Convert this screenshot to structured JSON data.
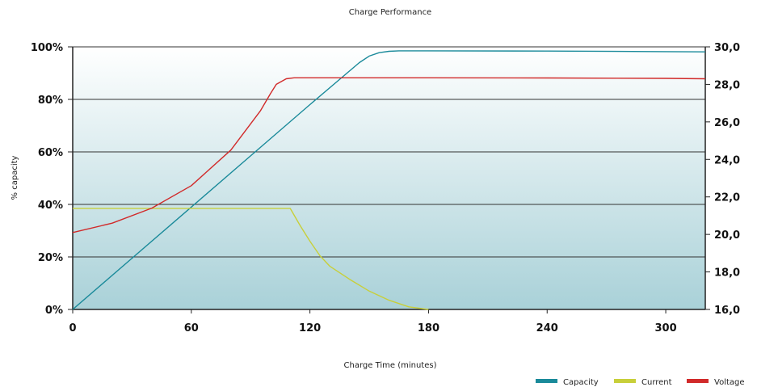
{
  "chart_data": {
    "type": "line",
    "title": "Charge Performance",
    "xlabel": "Charge Time (minutes)",
    "ylabel": "% capacity",
    "xlim": [
      0,
      320
    ],
    "ylim": [
      0,
      100
    ],
    "y2lim": [
      16,
      30
    ],
    "x_ticks": [
      0,
      60,
      120,
      180,
      240,
      300
    ],
    "x_tick_labels": [
      "0",
      "60",
      "120",
      "180",
      "240",
      "300"
    ],
    "y_ticks": [
      0,
      20,
      40,
      60,
      80,
      100
    ],
    "y_tick_labels": [
      "0%",
      "20%",
      "40%",
      "60%",
      "80%",
      "100%"
    ],
    "y2_ticks": [
      16,
      18,
      20,
      22,
      24,
      26,
      28,
      30
    ],
    "y2_tick_labels": [
      "16,0",
      "18,0",
      "20,0",
      "22,0",
      "24,0",
      "26,0",
      "28,0",
      "30,0"
    ],
    "grid": "horizontal",
    "legend_position": "bottom-right",
    "series": [
      {
        "name": "Capacity",
        "axis": "left",
        "color": "#1a8a9a",
        "x": [
          0,
          30,
          60,
          90,
          120,
          145,
          150,
          155,
          160,
          165,
          180,
          240,
          300,
          320
        ],
        "y": [
          0,
          19.5,
          39,
          58.5,
          78,
          94,
          96.5,
          97.8,
          98.3,
          98.5,
          98.5,
          98.4,
          98.2,
          98.1
        ]
      },
      {
        "name": "Current",
        "axis": "left",
        "color": "#c8cf3a",
        "x": [
          0,
          60,
          100,
          110,
          115,
          120,
          125,
          130,
          140,
          150,
          160,
          170,
          180
        ],
        "y": [
          38.5,
          38.5,
          38.5,
          38.5,
          32,
          26,
          20.5,
          16.5,
          11.5,
          7,
          3.5,
          1,
          0
        ]
      },
      {
        "name": "Voltage",
        "axis": "right",
        "color": "#d12a2a",
        "x": [
          0,
          20,
          40,
          60,
          80,
          95,
          100,
          103,
          108,
          112,
          120,
          180,
          240,
          300,
          320
        ],
        "y": [
          20.1,
          20.6,
          21.4,
          22.6,
          24.5,
          26.6,
          27.5,
          28.0,
          28.3,
          28.35,
          28.35,
          28.35,
          28.34,
          28.32,
          28.3
        ]
      }
    ]
  }
}
